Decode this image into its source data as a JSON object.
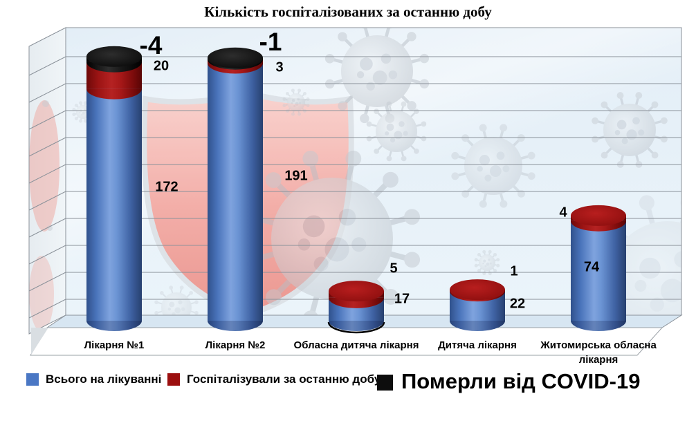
{
  "chart_data": {
    "type": "bar",
    "style": "3d-cylinder-stacked",
    "title": "Кількість госпіталізованих за останню добу",
    "categories": [
      "Лікарня №1",
      "Лікарня №2",
      "Обласна дитяча лікарня",
      "Дитяча лікарня",
      "Житомирська обласна лікарня"
    ],
    "series": [
      {
        "name": "Всього на лікуванні",
        "color": "#4a77c4",
        "values": [
          172,
          191,
          17,
          22,
          74
        ]
      },
      {
        "name": "Госпіталізували за останню добу",
        "color": "#9c0f0f",
        "values": [
          20,
          3,
          5,
          1,
          4
        ]
      },
      {
        "name": "Померли від COVID-19",
        "color": "#0d0d0d",
        "values": [
          -4,
          -1,
          0,
          0,
          0
        ]
      }
    ],
    "value_axis": {
      "min": 0,
      "max": 215,
      "gridline_step": 20,
      "tick_labels_visible": false
    },
    "gridlines": true,
    "data_labels_visible": true,
    "legend_position": "bottom",
    "background_watermark": [
      "red shield",
      "gray coronavirus particles"
    ]
  }
}
